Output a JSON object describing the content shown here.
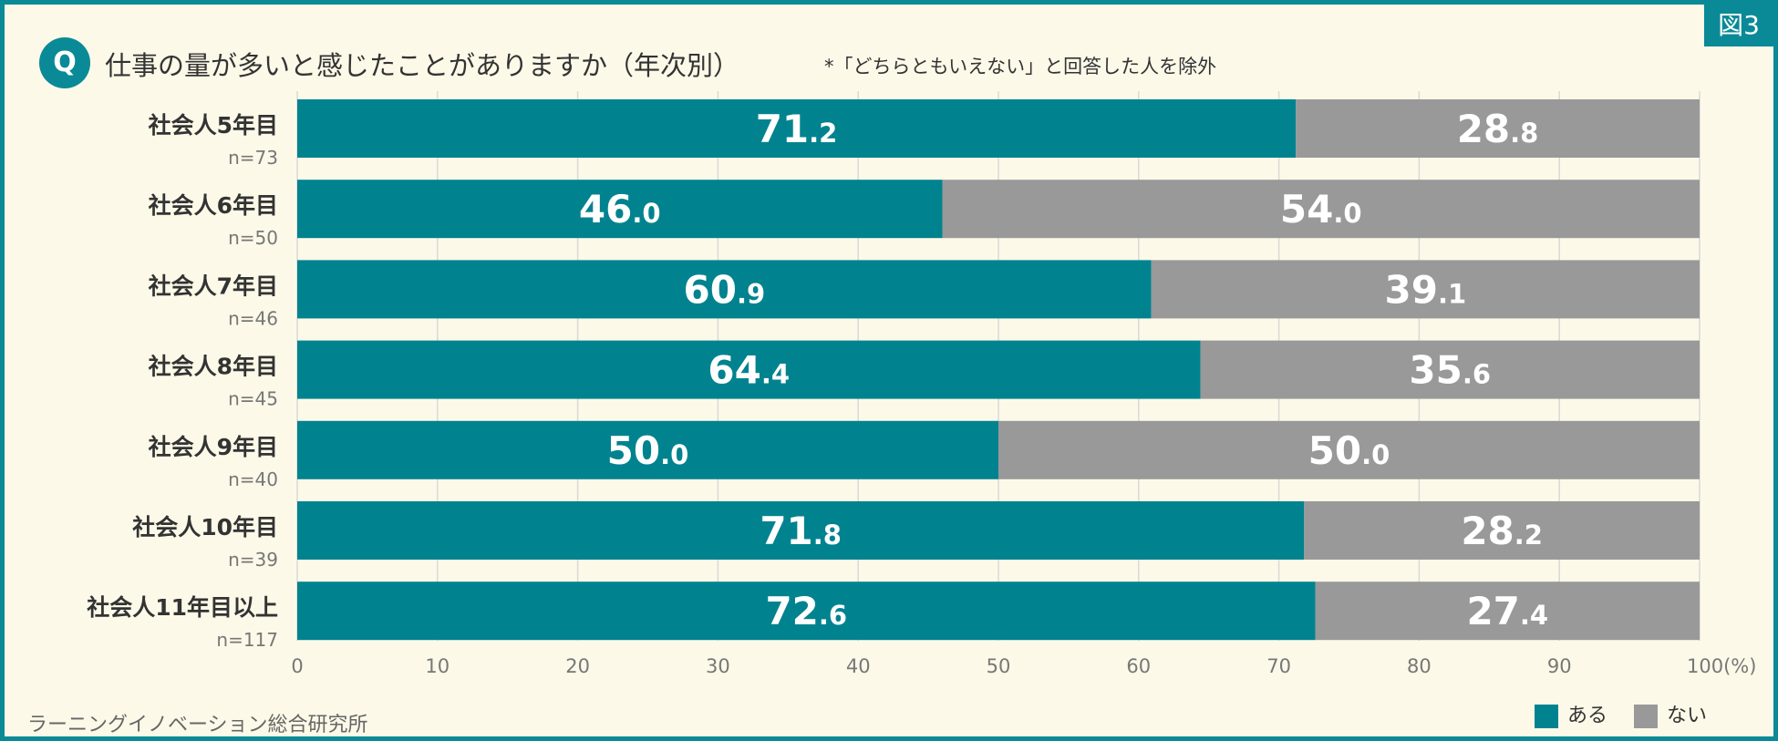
{
  "figure_label": "図3",
  "q_badge": "Q",
  "title": "仕事の量が多いと感じたことがありますか（年次別）",
  "note": "*「どちらともいえない」と回答した人を除外",
  "source": "ラーニングイノベーション総合研究所",
  "colors": {
    "aru": "#00838f",
    "nai": "#999999",
    "frame": "#0a8a96",
    "background": "#fdf9e8"
  },
  "chart_data": {
    "type": "bar",
    "orientation": "horizontal",
    "stacked": true,
    "categories": [
      "社会人5年目",
      "社会人6年目",
      "社会人7年目",
      "社会人8年目",
      "社会人9年目",
      "社会人10年目",
      "社会人11年目以上"
    ],
    "n_labels": [
      "n=73",
      "n=50",
      "n=46",
      "n=45",
      "n=40",
      "n=39",
      "n=117"
    ],
    "series": [
      {
        "name": "ある",
        "values": [
          71.2,
          46.0,
          60.9,
          64.4,
          50.0,
          71.8,
          72.6
        ]
      },
      {
        "name": "ない",
        "values": [
          28.8,
          54.0,
          39.1,
          35.6,
          50.0,
          28.2,
          27.4
        ]
      }
    ],
    "xlim": [
      0,
      100
    ],
    "xticks": [
      "0",
      "10",
      "20",
      "30",
      "40",
      "50",
      "60",
      "70",
      "80",
      "90",
      "100(%)"
    ],
    "grid": true,
    "legend": "bottom-right"
  }
}
